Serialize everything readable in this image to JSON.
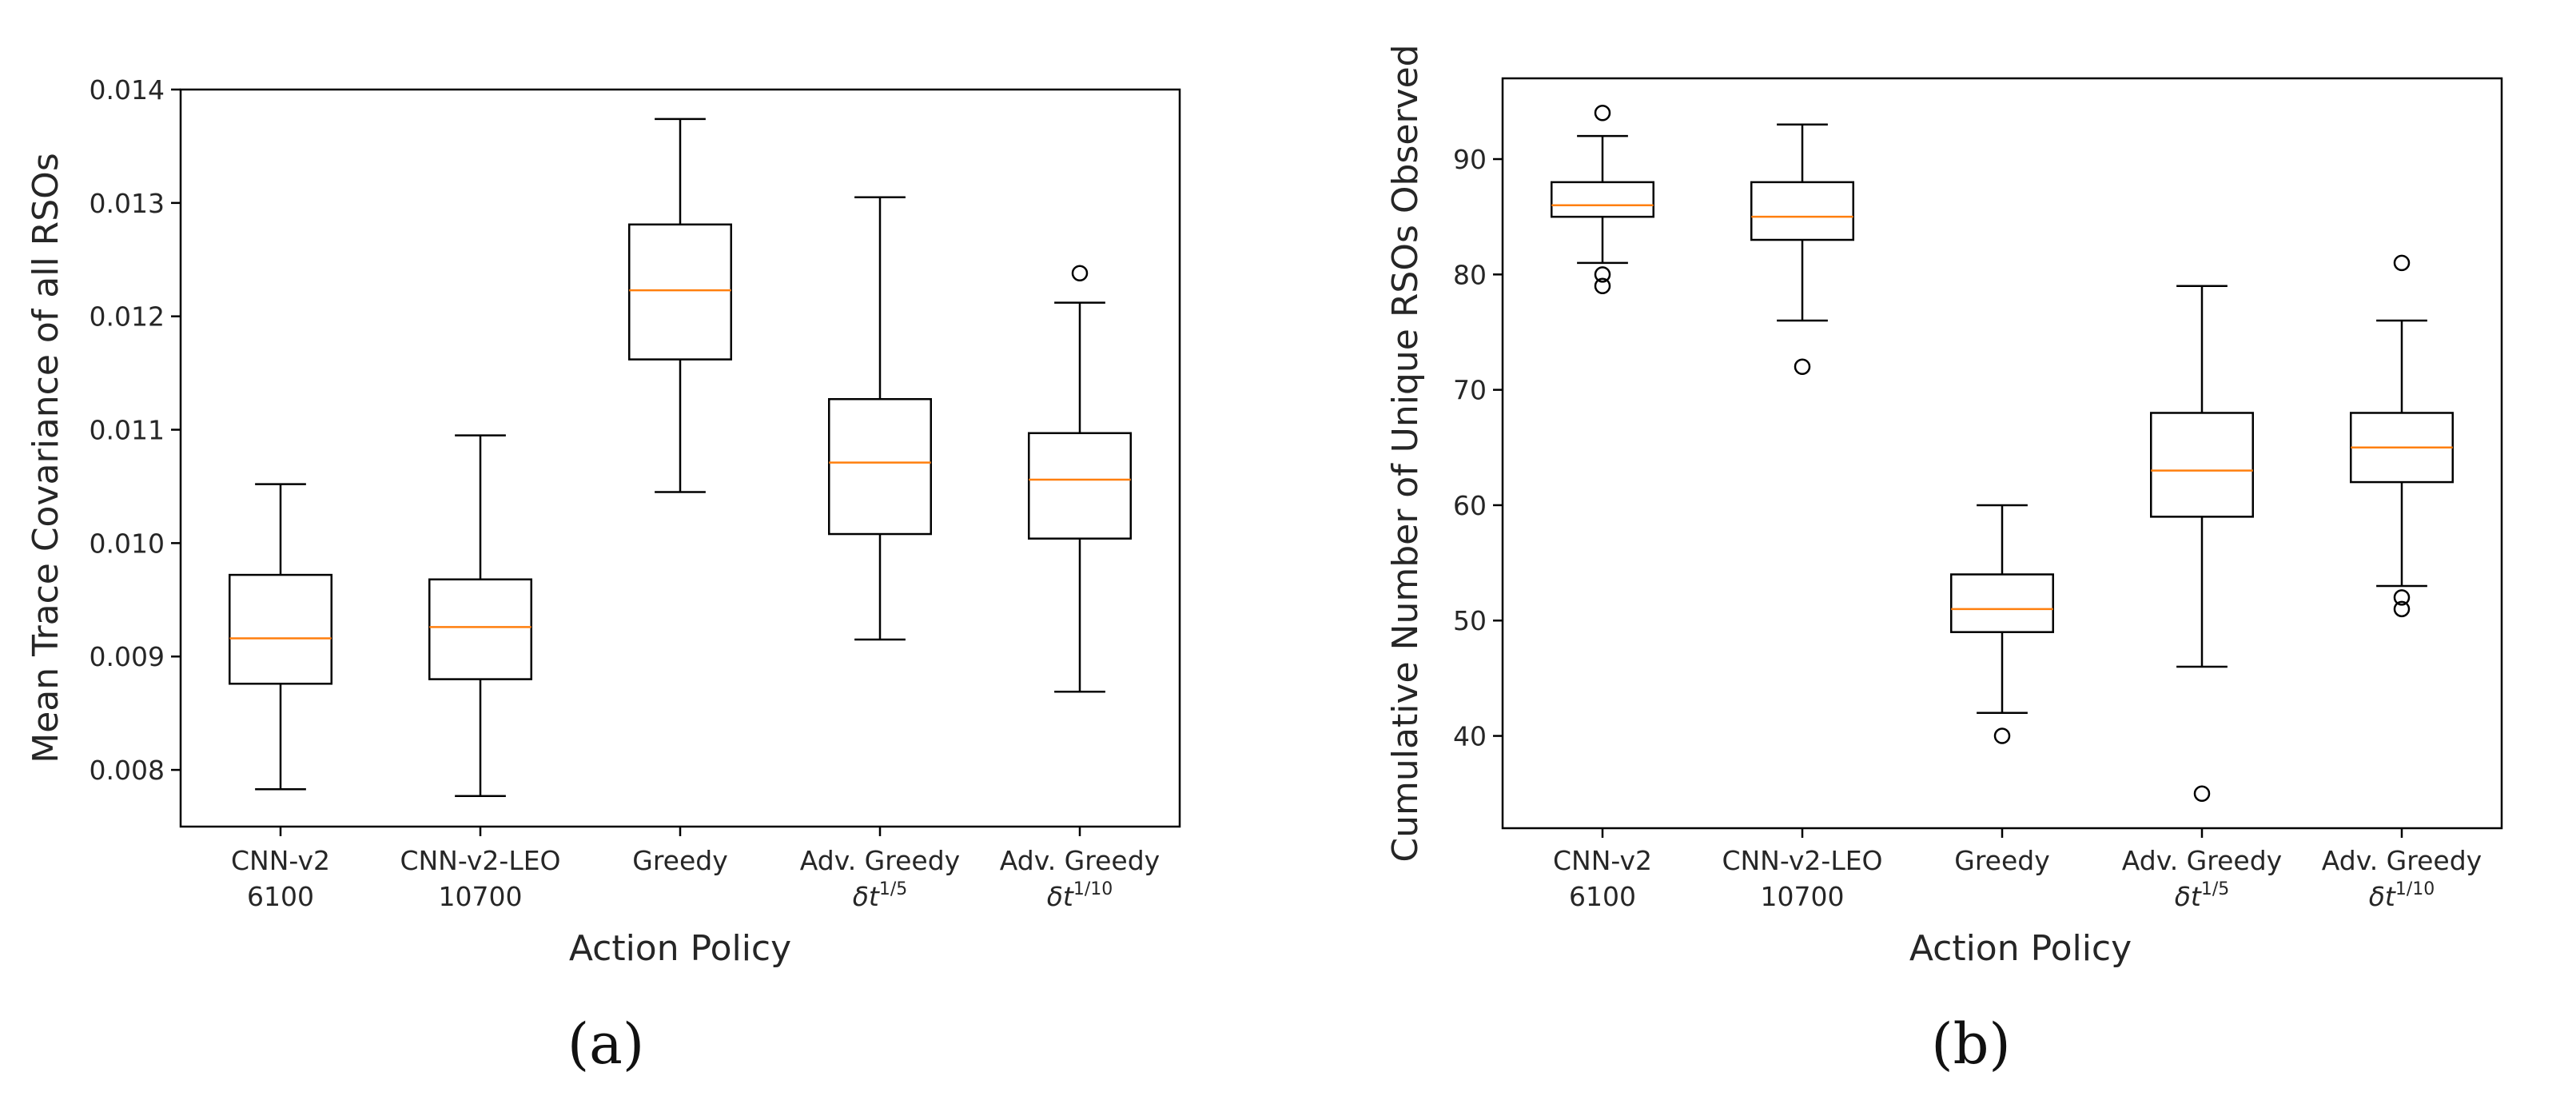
{
  "chart_data": [
    {
      "type": "box",
      "panel_label": "(a)",
      "xlabel": "Action Policy",
      "ylabel": "Mean Trace Covariance of all RSOs",
      "ylim": [
        0.0075,
        0.014
      ],
      "yticks": [
        "0.008",
        "0.009",
        "0.010",
        "0.011",
        "0.012",
        "0.013",
        "0.014"
      ],
      "ytick_values": [
        0.008,
        0.009,
        0.01,
        0.011,
        0.012,
        0.013,
        0.014
      ],
      "grid": false,
      "categories": [
        {
          "line1": "CNN-v2",
          "line2": "6100"
        },
        {
          "line1": "CNN-v2-LEO",
          "line2": "10700"
        },
        {
          "line1": "Greedy",
          "line2": ""
        },
        {
          "line1": "Adv. Greedy",
          "line2": "δt",
          "sup": "1/5"
        },
        {
          "line1": "Adv. Greedy",
          "line2": "δt",
          "sup": "1/10"
        }
      ],
      "boxes": [
        {
          "whislo": 0.00783,
          "q1": 0.00876,
          "med": 0.00916,
          "q3": 0.00972,
          "whishi": 0.01052,
          "fliers": []
        },
        {
          "whislo": 0.00777,
          "q1": 0.0088,
          "med": 0.00926,
          "q3": 0.00968,
          "whishi": 0.01095,
          "fliers": []
        },
        {
          "whislo": 0.01045,
          "q1": 0.01162,
          "med": 0.01223,
          "q3": 0.01281,
          "whishi": 0.01374,
          "fliers": []
        },
        {
          "whislo": 0.00915,
          "q1": 0.01008,
          "med": 0.01071,
          "q3": 0.01127,
          "whishi": 0.01305,
          "fliers": []
        },
        {
          "whislo": 0.00869,
          "q1": 0.01004,
          "med": 0.01056,
          "q3": 0.01097,
          "whishi": 0.01212,
          "fliers": [
            0.01238
          ]
        }
      ],
      "colors": {
        "median": "#ff7f0e",
        "box": "#000000"
      }
    },
    {
      "type": "box",
      "panel_label": "(b)",
      "xlabel": "Action Policy",
      "ylabel": "Cumulative Number of Unique RSOs Observed",
      "ylim": [
        32,
        97
      ],
      "yticks": [
        "40",
        "50",
        "60",
        "70",
        "80",
        "90"
      ],
      "ytick_values": [
        40,
        50,
        60,
        70,
        80,
        90
      ],
      "grid": false,
      "categories": [
        {
          "line1": "CNN-v2",
          "line2": "6100"
        },
        {
          "line1": "CNN-v2-LEO",
          "line2": "10700"
        },
        {
          "line1": "Greedy",
          "line2": ""
        },
        {
          "line1": "Adv. Greedy",
          "line2": "δt",
          "sup": "1/5"
        },
        {
          "line1": "Adv. Greedy",
          "line2": "δt",
          "sup": "1/10"
        }
      ],
      "boxes": [
        {
          "whislo": 81,
          "q1": 85,
          "med": 86,
          "q3": 88,
          "whishi": 92,
          "fliers": [
            94,
            80,
            79
          ]
        },
        {
          "whislo": 76,
          "q1": 83,
          "med": 85,
          "q3": 88,
          "whishi": 93,
          "fliers": [
            72
          ]
        },
        {
          "whislo": 42,
          "q1": 49,
          "med": 51,
          "q3": 54,
          "whishi": 60,
          "fliers": [
            40
          ]
        },
        {
          "whislo": 46,
          "q1": 59,
          "med": 63,
          "q3": 68,
          "whishi": 79,
          "fliers": [
            35
          ]
        },
        {
          "whislo": 53,
          "q1": 62,
          "med": 65,
          "q3": 68,
          "whishi": 76,
          "fliers": [
            81,
            52,
            51
          ]
        }
      ],
      "colors": {
        "median": "#ff7f0e",
        "box": "#000000"
      }
    }
  ]
}
